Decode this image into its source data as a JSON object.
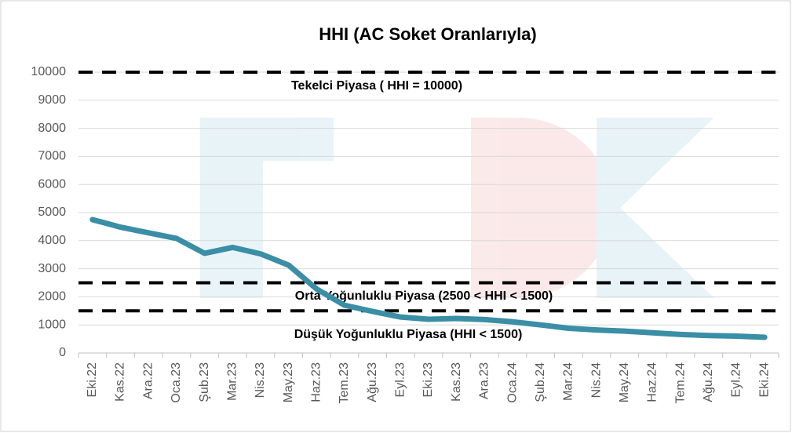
{
  "chart_data": {
    "type": "line",
    "title": "HHI (AC Soket Oranlarıyla)",
    "categories": [
      "Eki.22",
      "Kas.22",
      "Ara.22",
      "Oca.23",
      "Şub.23",
      "Mar.23",
      "Nis.23",
      "May.23",
      "Haz.23",
      "Tem.23",
      "Ağu.23",
      "Eyl.23",
      "Eki.23",
      "Kas.23",
      "Ara.23",
      "Oca.24",
      "Şub.24",
      "Mar.24",
      "Nis.24",
      "May.24",
      "Haz.24",
      "Tem.24",
      "Ağu.24",
      "Eyl.24",
      "Eki.24"
    ],
    "series": [
      {
        "name": "HHI",
        "color": "#3a8ea5",
        "values": [
          4750,
          4480,
          4280,
          4080,
          3550,
          3760,
          3530,
          3130,
          2280,
          1700,
          1480,
          1280,
          1200,
          1230,
          1190,
          1110,
          1000,
          880,
          820,
          780,
          720,
          660,
          620,
          600,
          560
        ]
      }
    ],
    "reference_lines": [
      {
        "value": 10000,
        "label": "Tekelci Piyasa ( HHI = 10000)"
      },
      {
        "value": 2500,
        "label": "Orta Yoğunluklu Piyasa (2500 < HHI < 1500)"
      },
      {
        "value": 1500,
        "label": "Düşük Yoğunluklu Piyasa (HHI < 1500)"
      }
    ],
    "ylim": [
      0,
      10000
    ],
    "yticks": [
      0,
      1000,
      2000,
      3000,
      4000,
      5000,
      6000,
      7000,
      8000,
      9000,
      10000
    ],
    "grid": true
  }
}
